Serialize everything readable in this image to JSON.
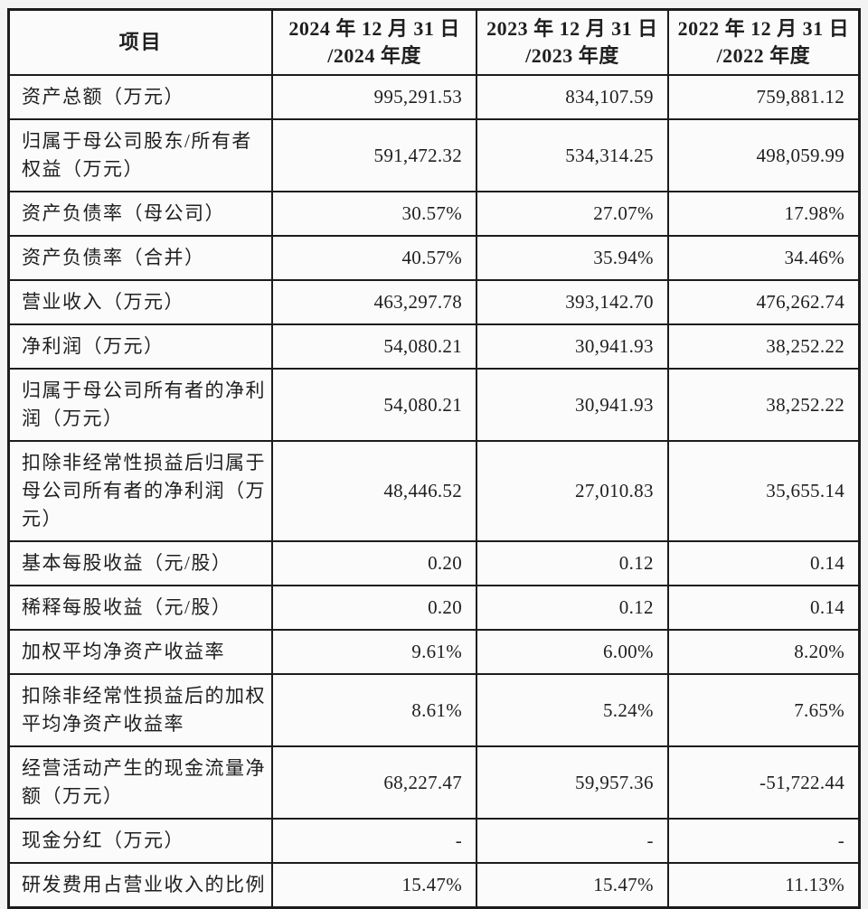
{
  "table": {
    "header": {
      "item": "项目",
      "cols": [
        {
          "line1": "2024 年 12 月 31 日",
          "line2": "/2024 年度"
        },
        {
          "line1": "2023 年 12 月 31 日",
          "line2": "/2023 年度"
        },
        {
          "line1": "2022 年 12 月 31 日",
          "line2": "/2022 年度"
        }
      ]
    },
    "rows": [
      {
        "label": "资产总额（万元）",
        "values": [
          "995,291.53",
          "834,107.59",
          "759,881.12"
        ]
      },
      {
        "label": "归属于母公司股东/所有者权益（万元）",
        "values": [
          "591,472.32",
          "534,314.25",
          "498,059.99"
        ]
      },
      {
        "label": "资产负债率（母公司）",
        "values": [
          "30.57%",
          "27.07%",
          "17.98%"
        ]
      },
      {
        "label": "资产负债率（合并）",
        "values": [
          "40.57%",
          "35.94%",
          "34.46%"
        ]
      },
      {
        "label": "营业收入（万元）",
        "values": [
          "463,297.78",
          "393,142.70",
          "476,262.74"
        ]
      },
      {
        "label": "净利润（万元）",
        "values": [
          "54,080.21",
          "30,941.93",
          "38,252.22"
        ]
      },
      {
        "label": "归属于母公司所有者的净利润（万元）",
        "values": [
          "54,080.21",
          "30,941.93",
          "38,252.22"
        ]
      },
      {
        "label": "扣除非经常性损益后归属于母公司所有者的净利润（万元）",
        "values": [
          "48,446.52",
          "27,010.83",
          "35,655.14"
        ]
      },
      {
        "label": "基本每股收益（元/股）",
        "values": [
          "0.20",
          "0.12",
          "0.14"
        ]
      },
      {
        "label": "稀释每股收益（元/股）",
        "values": [
          "0.20",
          "0.12",
          "0.14"
        ]
      },
      {
        "label": "加权平均净资产收益率",
        "values": [
          "9.61%",
          "6.00%",
          "8.20%"
        ]
      },
      {
        "label": "扣除非经常性损益后的加权平均净资产收益率",
        "values": [
          "8.61%",
          "5.24%",
          "7.65%"
        ]
      },
      {
        "label": "经营活动产生的现金流量净额（万元）",
        "values": [
          "68,227.47",
          "59,957.36",
          "-51,722.44"
        ]
      },
      {
        "label": "现金分红（万元）",
        "values": [
          "-",
          "-",
          "-"
        ]
      },
      {
        "label": "研发费用占营业收入的比例",
        "values": [
          "15.47%",
          "15.47%",
          "11.13%"
        ]
      }
    ],
    "colors": {
      "border": "#1c1c1c",
      "cell_background": "#fbfbfb",
      "page_background": "#f3f3f3",
      "text": "#1f1f1f"
    }
  }
}
